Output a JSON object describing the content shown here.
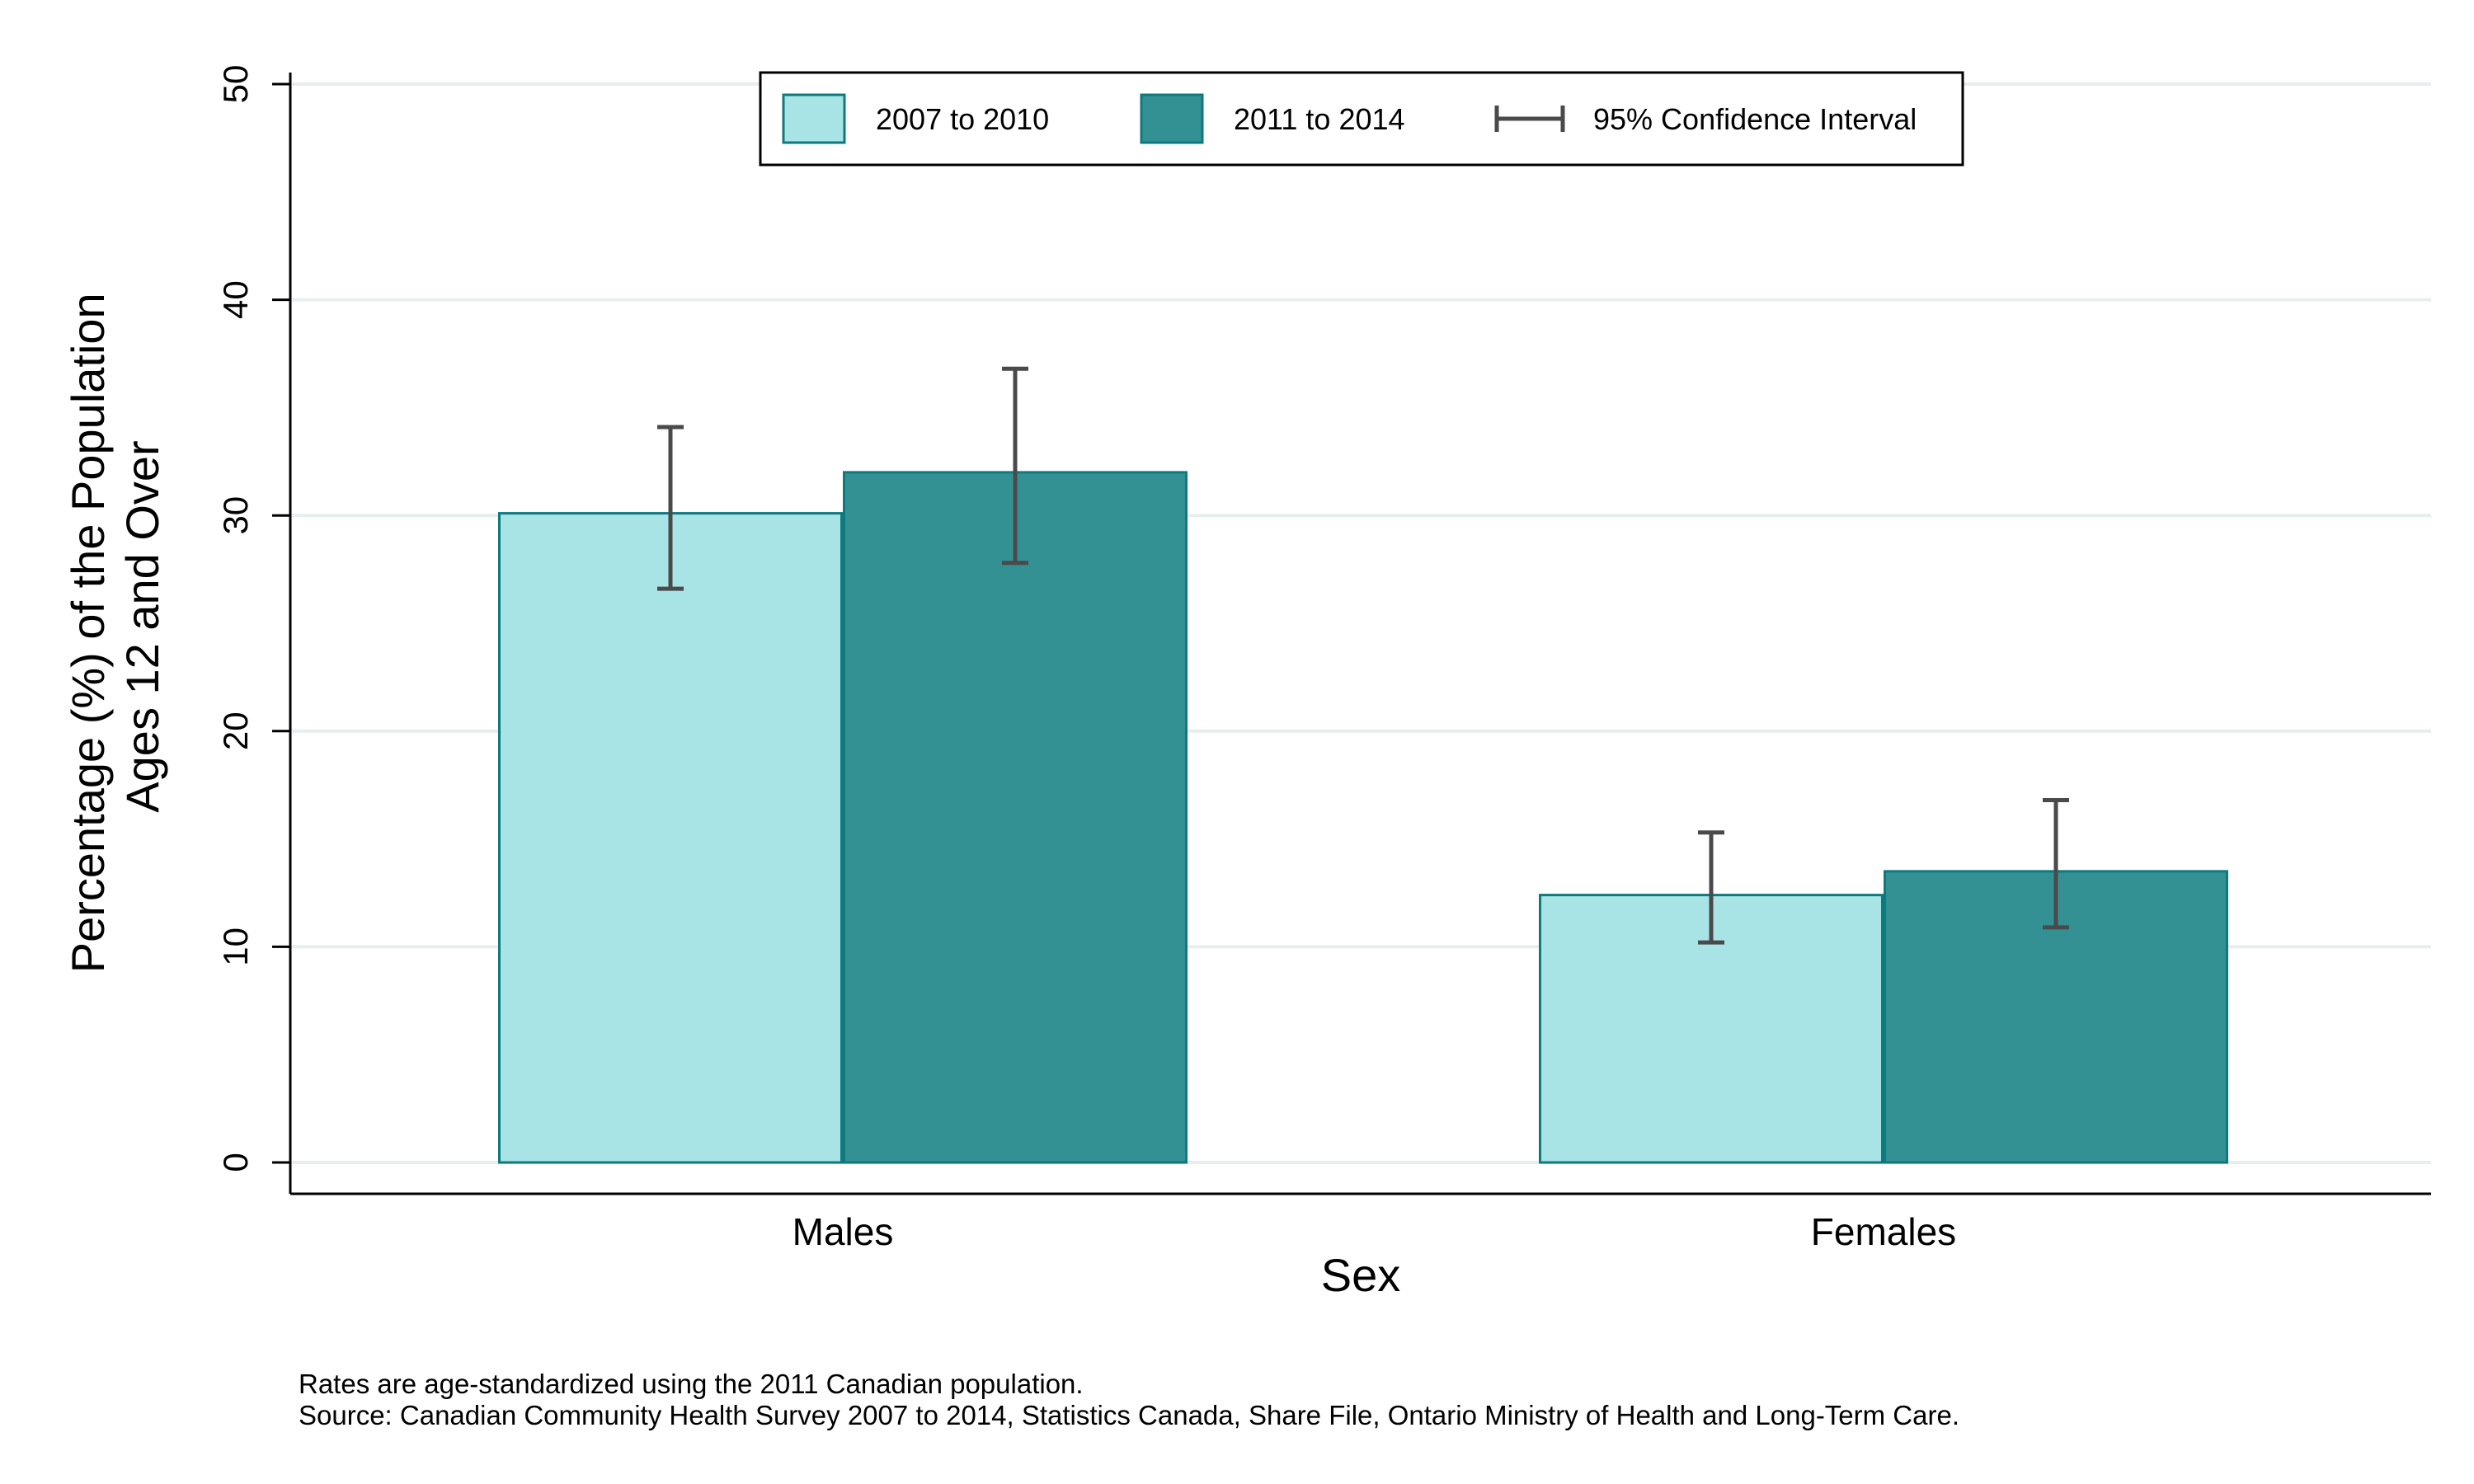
{
  "chart_data": {
    "type": "bar",
    "title": "",
    "xlabel": "Sex",
    "ylabel": [
      "Percentage (%) of the Population",
      "Ages 12 and Over"
    ],
    "ylim": [
      0,
      50
    ],
    "yticks": [
      0,
      10,
      20,
      30,
      40,
      50
    ],
    "grid": true,
    "legend_placement": "top-center",
    "categories": [
      "Males",
      "Females"
    ],
    "series": [
      {
        "name": "2007 to 2010",
        "color": "#a8e4e6",
        "values": [
          30.1,
          12.4
        ],
        "ci_low": [
          26.6,
          10.2
        ],
        "ci_high": [
          34.1,
          15.3
        ]
      },
      {
        "name": "2011 to 2014",
        "color": "#339194",
        "values": [
          32.0,
          13.5
        ],
        "ci_low": [
          27.8,
          10.9
        ],
        "ci_high": [
          36.8,
          16.8
        ]
      }
    ],
    "ci_legend_label": "95% Confidence Interval",
    "notes": [
      "Rates are age-standardized using the 2011 Canadian population.",
      "Source: Canadian Community Health Survey 2007 to 2014, Statistics Canada, Share File, Ontario Ministry of Health and Long-Term Care."
    ],
    "colors": {
      "edge": "#0e7a7e",
      "errorbar": "#4a4a4a",
      "grid": "#e6eeee",
      "axis": "#000000"
    }
  }
}
